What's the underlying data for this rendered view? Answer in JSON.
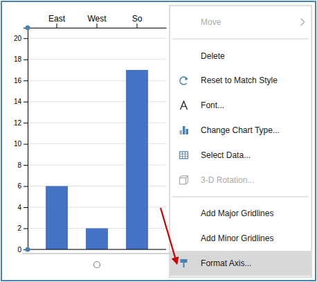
{
  "chart_data": {
    "type": "bar",
    "categories": [
      "East",
      "West",
      "So"
    ],
    "values": [
      6,
      2,
      17
    ],
    "color": "#4472C4",
    "ylim": [
      0,
      21
    ],
    "yticks": [
      0,
      2,
      4,
      6,
      8,
      10,
      12,
      14,
      16,
      18,
      20
    ],
    "grid": true,
    "annotations": [
      "Move",
      "Delete",
      "Reset to Match Style",
      "Font...",
      "Change Chart Type...",
      "Select Data...",
      "3-D Rotation...",
      "Add Major Gridlines",
      "Add Minor Gridlines",
      "Format Axis..."
    ]
  }
}
